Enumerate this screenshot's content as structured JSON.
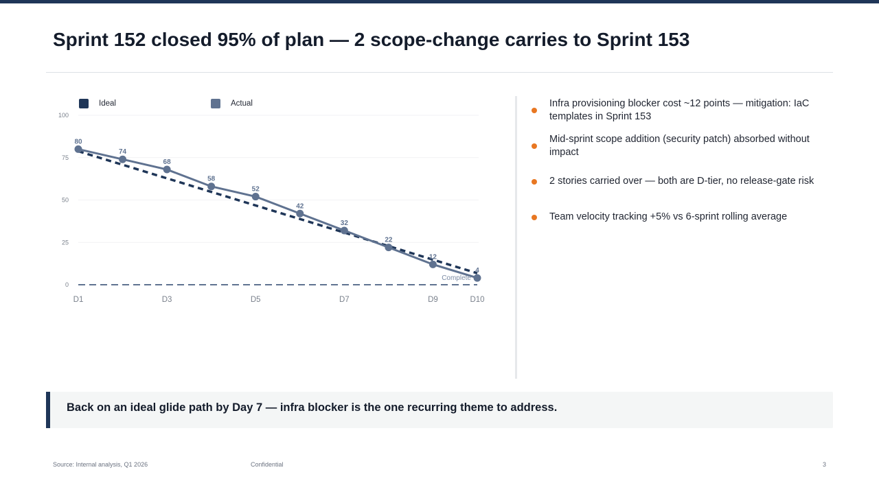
{
  "slide": {
    "title": "Sprint 152 closed 95% of plan — 2 scope-change carries to Sprint 153",
    "callout": "Back on an ideal glide path by Day 7 — infra blocker is the one recurring theme to address.",
    "bullets": [
      "Infra provisioning blocker cost ~12 points — mitigation: IaC templates in Sprint 153",
      "Mid-sprint scope addition (security patch) absorbed without impact",
      "2 stories carried over — both are D-tier, no release-gate risk",
      "Team velocity tracking +5% vs 6-sprint rolling average"
    ],
    "footer": {
      "source": "Source: Internal analysis, Q1 2026",
      "confidential": "Confidential",
      "page": "3"
    },
    "colors": {
      "brand_navy": "#1f3658",
      "actual": "#5f7290",
      "bullet_accent": "#e87722"
    }
  },
  "chart_data": {
    "type": "line",
    "title": "",
    "xlabel": "",
    "ylabel": "",
    "x": [
      "D1",
      "D2",
      "D3",
      "D4",
      "D5",
      "D6",
      "D7",
      "D8",
      "D9",
      "D10"
    ],
    "x_tick_labels": [
      "D1",
      "D3",
      "D5",
      "D7",
      "D9",
      "D10"
    ],
    "ylim": [
      0,
      100
    ],
    "y_ticks": [
      0,
      25,
      50,
      75,
      100
    ],
    "grid": true,
    "legend": {
      "position": "top-left",
      "entries": [
        "Ideal",
        "Actual"
      ]
    },
    "series": [
      {
        "name": "Ideal",
        "style": "dashed",
        "color": "#1f3658",
        "values": [
          80,
          72,
          64,
          56,
          48,
          40,
          32,
          24,
          16,
          8
        ]
      },
      {
        "name": "Actual",
        "style": "solid-markers",
        "color": "#5f7290",
        "values": [
          80,
          74,
          68,
          58,
          52,
          42,
          32,
          22,
          12,
          4
        ],
        "data_labels": true
      }
    ],
    "reference_line": {
      "value": 0,
      "style": "dashed",
      "color": "#5f7290"
    },
    "annotations": [
      {
        "x": "D10",
        "text": "Complete"
      }
    ]
  }
}
